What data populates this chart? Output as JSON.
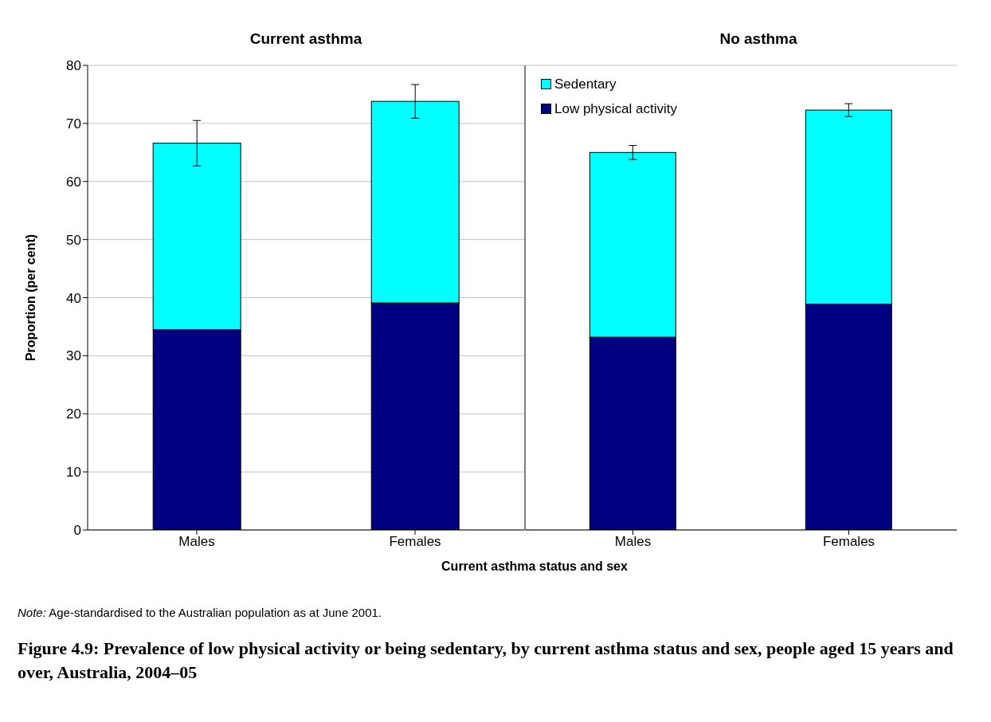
{
  "chart_data": [
    {
      "type": "bar",
      "title": "Current asthma",
      "ylabel": "Proportion (per cent)",
      "xlabel": "Current asthma status and sex",
      "categories": [
        "Males",
        "Females"
      ],
      "stacked": true,
      "series": [
        {
          "color": "#000080",
          "values": [
            34.5,
            39.1
          ]
        },
        {
          "color": "#00ffff",
          "values": [
            32.1,
            34.7
          ],
          "errors": [
            3.9,
            2.9
          ]
        }
      ],
      "ylim": [
        0,
        80
      ],
      "yticks": [
        0,
        10,
        20,
        30,
        40,
        50,
        60,
        70,
        80
      ],
      "grid": "y",
      "legend": false,
      "annotations": [
        "Note: Age-standardised to the Australian population as at June 2001.",
        "Figure 4.9:  Prevalence of low physical activity or being sedentary, by current asthma status and sex, people aged 15 years and over, Australia, 2004–05"
      ]
    },
    {
      "type": "bar",
      "title": "No asthma",
      "categories": [
        "Males",
        "Females"
      ],
      "stacked": true,
      "series": [
        {
          "name": "Low physical activity",
          "color": "#000080",
          "values": [
            33.2,
            38.9
          ]
        },
        {
          "name": "Sedentary",
          "color": "#00ffff",
          "values": [
            31.8,
            33.4
          ],
          "errors": [
            1.2,
            1.1
          ]
        }
      ],
      "ylim": [
        0,
        80
      ],
      "yticks": [
        0,
        10,
        20,
        30,
        40,
        50,
        60,
        70,
        80
      ],
      "grid": "y",
      "legend": "top left",
      "tick_labels": "x"
    }
  ]
}
